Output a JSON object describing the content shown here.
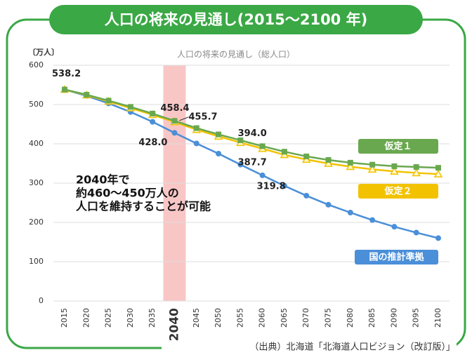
{
  "chart_data": {
    "type": "line",
    "title": "人口の将来の見通し(2015～2100 年)",
    "subtitle": "人口の将来の見通し（総人口）",
    "y_unit": "〔万人〕",
    "source": "（出典）北海道「北海道人口ビジョン（改訂版）」",
    "categories": [
      "2015",
      "2020",
      "2025",
      "2030",
      "2035",
      "2040",
      "2045",
      "2050",
      "2055",
      "2060",
      "2065",
      "2070",
      "2075",
      "2080",
      "2085",
      "2090",
      "2095",
      "2100"
    ],
    "highlight_category": "2040",
    "highlight_color": "#f9c6c6",
    "ylim": [
      0,
      600
    ],
    "yticks": [
      0,
      100,
      200,
      300,
      400,
      500,
      600
    ],
    "grid": true,
    "series": [
      {
        "name": "国の推計準拠",
        "color": "#4a8fd8",
        "marker": "circle",
        "values": [
          538.2,
          522,
          503,
          481,
          456,
          428.0,
          401,
          375,
          347,
          319.8,
          293,
          268,
          245,
          225,
          206,
          189,
          174,
          160
        ],
        "value_labels": [
          "538.2",
          null,
          null,
          null,
          null,
          "428.0",
          null,
          null,
          null,
          "319.8",
          null,
          null,
          null,
          null,
          null,
          null,
          null,
          null
        ]
      },
      {
        "name": "仮定１",
        "color": "#6aa84f",
        "marker": "square",
        "values": [
          538.2,
          525,
          510,
          494,
          477,
          458.4,
          440,
          424,
          409,
          394.0,
          380,
          368,
          359,
          352,
          347,
          343,
          341,
          339
        ],
        "value_labels": [
          null,
          null,
          null,
          null,
          null,
          "458.4",
          null,
          null,
          null,
          "394.0",
          null,
          null,
          null,
          null,
          null,
          null,
          null,
          null
        ]
      },
      {
        "name": "仮定２",
        "color": "#f2c200",
        "marker": "triangle",
        "values": [
          538.2,
          524,
          508,
          491,
          474,
          455.7,
          436,
          419,
          403,
          387.7,
          372,
          360,
          350,
          342,
          335,
          330,
          326,
          323
        ],
        "value_labels": [
          null,
          null,
          null,
          null,
          null,
          "455.7",
          null,
          null,
          null,
          "387.7",
          null,
          null,
          null,
          null,
          null,
          null,
          null,
          null
        ]
      }
    ],
    "annotation": [
      "2040年で",
      "約460～450万人の",
      "人口を維持することが可能"
    ]
  }
}
